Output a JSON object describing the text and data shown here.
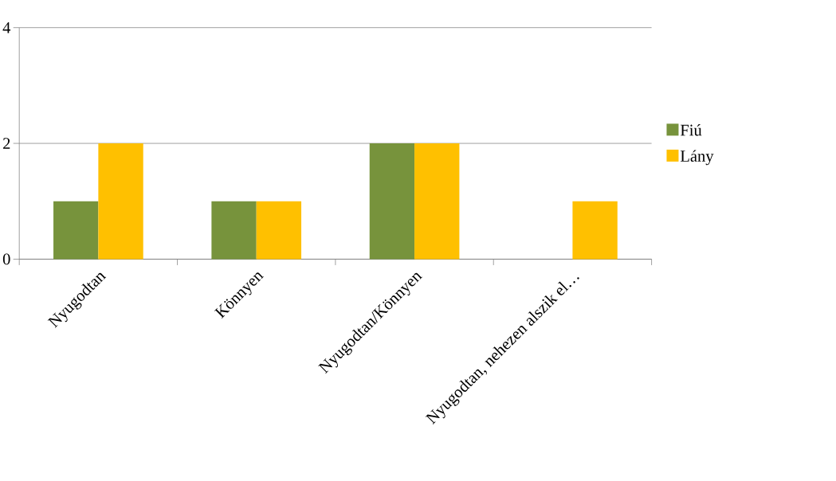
{
  "chart_data": {
    "type": "bar",
    "categories": [
      "Nyugodtan",
      "Könnyen",
      "Nyugodtan/Könnyen",
      "Nyugodtan, nehezen alszik el…"
    ],
    "series": [
      {
        "name": "Fiú",
        "color": "#77933c",
        "values": [
          1,
          1,
          2,
          0
        ]
      },
      {
        "name": "Lány",
        "color": "#ffc000",
        "values": [
          2,
          1,
          2,
          1
        ]
      }
    ],
    "ylim": [
      0,
      4
    ],
    "yticks": [
      0,
      2,
      4
    ],
    "grid": "y",
    "legend": "right"
  }
}
